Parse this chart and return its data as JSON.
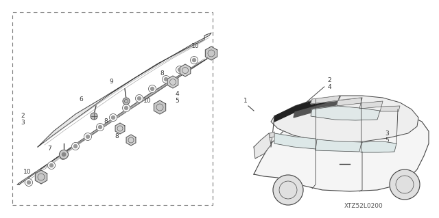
{
  "bg_color": "#ffffff",
  "line_color": "#444444",
  "text_color": "#333333",
  "diagram_code": "XTZ52L0200",
  "figsize": [
    6.4,
    3.19
  ],
  "dpi": 100
}
